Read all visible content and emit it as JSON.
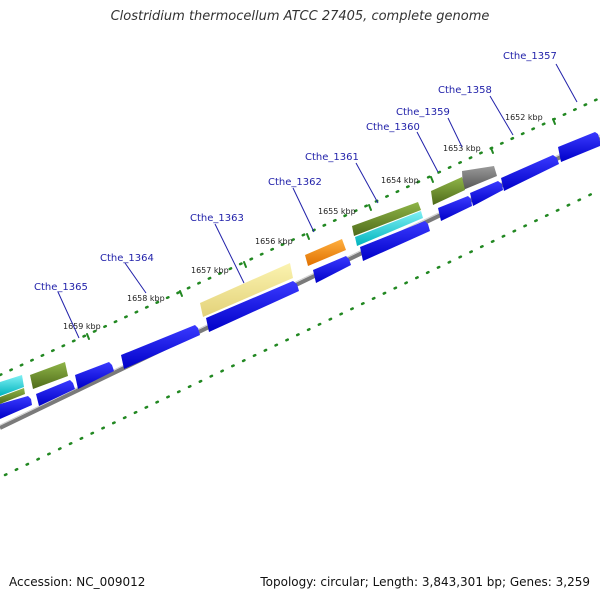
{
  "title": "Clostridium thermocellum ATCC 27405, complete genome",
  "accession": "Accession: NC_009012",
  "summary": "Topology: circular; Length: 3,843,301 bp; Genes: 3,259",
  "colors": {
    "gene_label": "#2222aa",
    "tick": "#228822",
    "backbone": "#777777",
    "cds": "#0000ee",
    "olive": "#6b8e23",
    "cyan": "#00c8d0",
    "orange": "#ff8c00",
    "khaki": "#f0e68c",
    "gray": "#707070"
  },
  "kbp_labels": [
    "1652 kbp",
    "1653 kbp",
    "1654 kbp",
    "1655 kbp",
    "1656 kbp",
    "1657 kbp",
    "1658 kbp",
    "1659 kbp"
  ],
  "gene_labels": [
    "Cthe_1357",
    "Cthe_1358",
    "Cthe_1359",
    "Cthe_1360",
    "Cthe_1361",
    "Cthe_1362",
    "Cthe_1363",
    "Cthe_1364",
    "Cthe_1365"
  ]
}
